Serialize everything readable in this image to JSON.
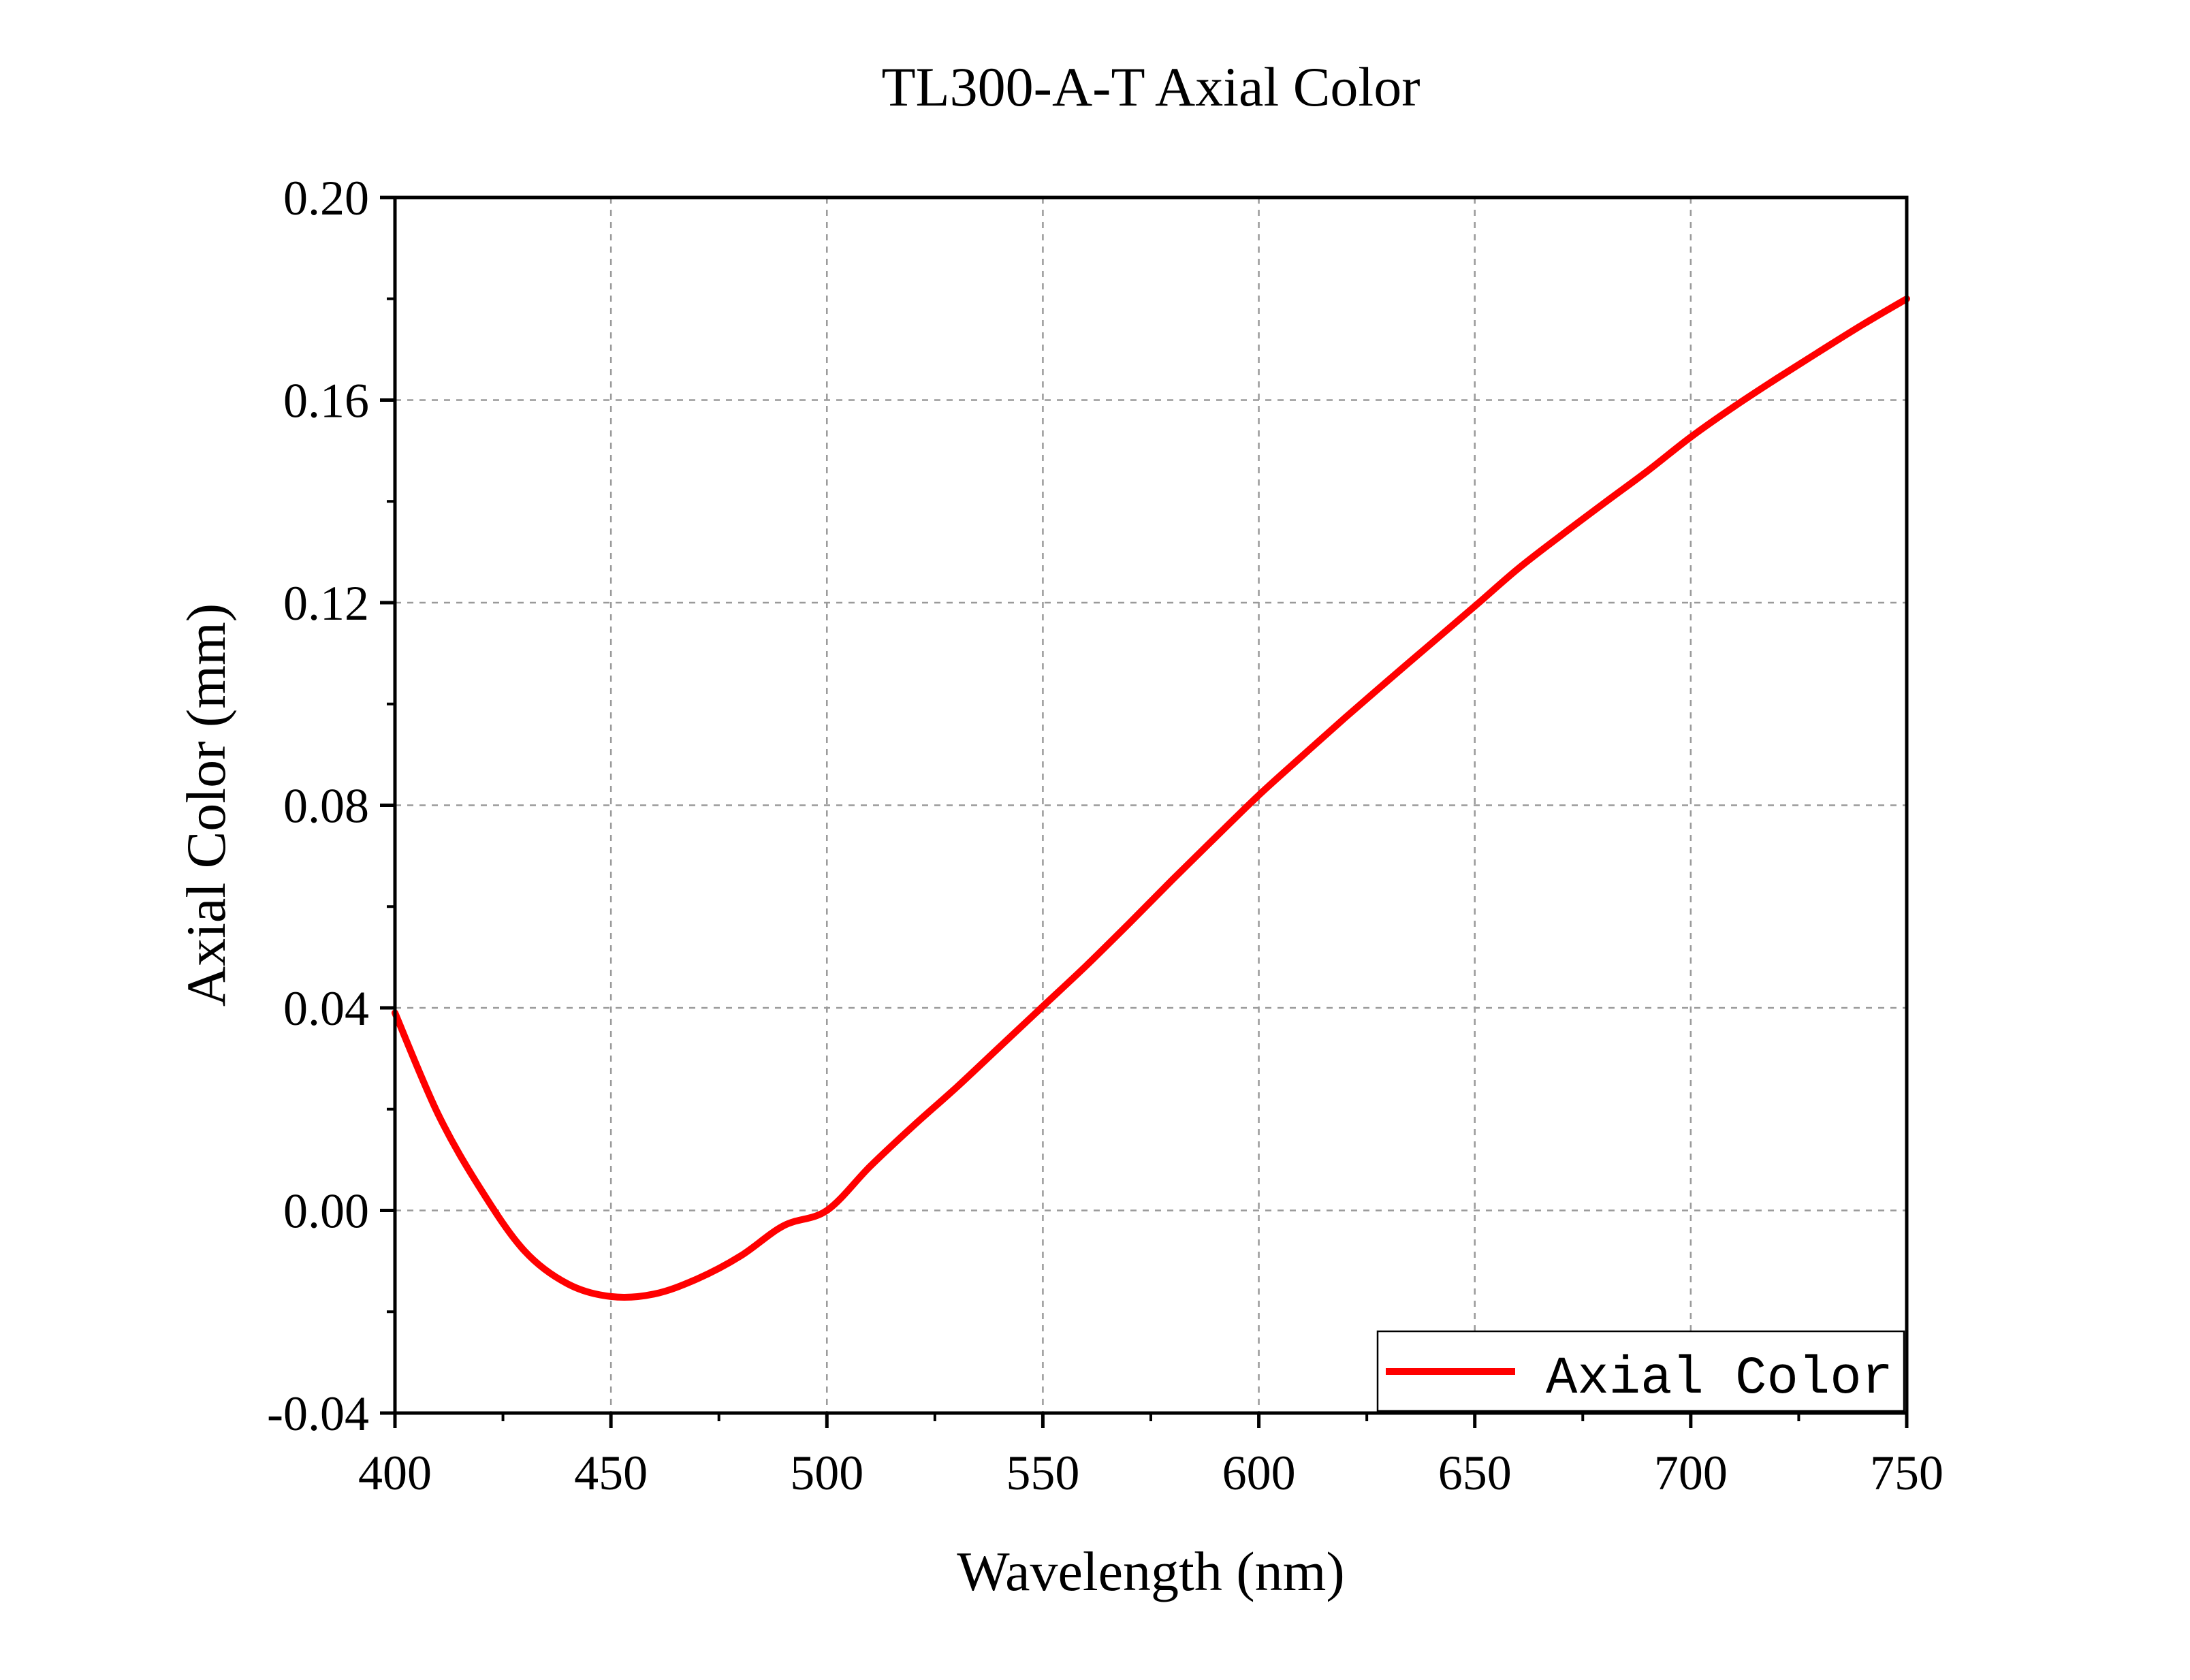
{
  "chart_data": {
    "type": "line",
    "title": "TL300-A-T Axial Color",
    "xlabel": "Wavelength (nm)",
    "ylabel": "Axial Color (mm)",
    "xlim": [
      400,
      750
    ],
    "ylim": [
      -0.04,
      0.2
    ],
    "x_ticks": [
      "400",
      "450",
      "500",
      "550",
      "600",
      "650",
      "700",
      "750"
    ],
    "y_ticks": [
      "-0.04",
      "0.00",
      "0.04",
      "0.08",
      "0.12",
      "0.16",
      "0.20"
    ],
    "grid": true,
    "legend_position": "bottom-right",
    "series": [
      {
        "name": "Axial Color",
        "color": "#ff0000",
        "x": [
          400,
          410,
          420,
          430,
          440,
          450,
          460,
          470,
          480,
          490,
          500,
          510,
          520,
          530,
          540,
          550,
          560,
          570,
          580,
          590,
          600,
          610,
          620,
          630,
          640,
          650,
          660,
          670,
          680,
          690,
          700,
          710,
          720,
          730,
          740,
          750
        ],
        "y": [
          0.039,
          0.019,
          0.004,
          -0.008,
          -0.0145,
          -0.017,
          -0.0165,
          -0.0135,
          -0.009,
          -0.003,
          0.0,
          0.0087,
          0.0167,
          0.0243,
          0.0323,
          0.0403,
          0.0483,
          0.0567,
          0.0653,
          0.0737,
          0.082,
          0.0897,
          0.0973,
          0.1047,
          0.112,
          0.1193,
          0.1267,
          0.1333,
          0.1397,
          0.146,
          0.1527,
          0.1587,
          0.1643,
          0.1697,
          0.175,
          0.18
        ]
      }
    ]
  }
}
